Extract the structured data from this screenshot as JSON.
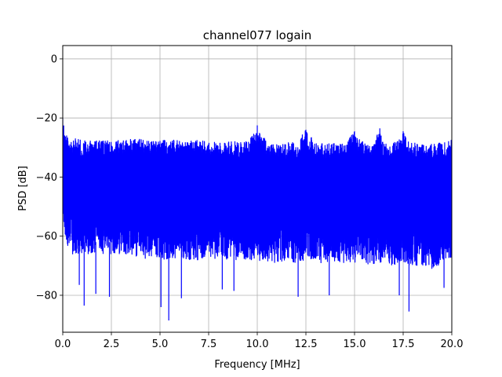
{
  "chart_data": {
    "type": "line",
    "title": "channel077 logain",
    "xlabel": "Frequency [MHz]",
    "ylabel": "PSD [dB]",
    "xlim": [
      0,
      20
    ],
    "ylim": [
      -92.5,
      4.5
    ],
    "grid": true,
    "legend": "none",
    "x_ticks": [
      0.0,
      2.5,
      5.0,
      7.5,
      10.0,
      12.5,
      15.0,
      17.5,
      20.0
    ],
    "x_tick_labels": [
      "0.0",
      "2.5",
      "5.0",
      "7.5",
      "10.0",
      "12.5",
      "15.0",
      "17.5",
      "20.0"
    ],
    "y_ticks": [
      0,
      -20,
      -40,
      -60,
      -80
    ],
    "y_tick_labels": [
      "0",
      "−20",
      "−40",
      "−60",
      "−80"
    ],
    "series": [
      {
        "color": "#0000ff",
        "description_points": {
          "x": [
            0.0,
            0.05,
            0.1,
            0.2,
            0.3,
            0.5,
            0.75,
            1.0,
            1.1,
            1.6,
            2.0,
            2.5,
            3.0,
            3.5,
            4.0,
            4.5,
            5.0,
            5.1,
            5.5,
            6.0,
            6.5,
            7.0,
            7.5,
            8.0,
            8.5,
            9.0,
            9.5,
            10.0,
            10.5,
            11.0,
            11.5,
            12.0,
            12.5,
            13.0,
            13.7,
            14.0,
            14.5,
            15.0,
            15.5,
            16.0,
            16.3,
            16.5,
            17.0,
            17.5,
            17.8,
            18.0,
            18.5,
            19.0,
            19.5,
            20.0
          ],
          "upper": [
            -20.0,
            -21.5,
            -24.0,
            -25.5,
            -26.5,
            -27.0,
            -27.0,
            -27.5,
            -27.5,
            -27.5,
            -27.8,
            -27.5,
            -27.5,
            -27.0,
            -27.0,
            -27.5,
            -27.5,
            -27.5,
            -27.5,
            -27.5,
            -27.8,
            -27.5,
            -28.0,
            -28.0,
            -28.0,
            -28.0,
            -28.0,
            -22.5,
            -28.0,
            -28.5,
            -28.0,
            -28.5,
            -24.0,
            -28.5,
            -28.5,
            -28.5,
            -28.5,
            -24.5,
            -28.5,
            -28.5,
            -23.5,
            -28.5,
            -28.5,
            -24.5,
            -28.5,
            -28.5,
            -28.5,
            -28.5,
            -28.5,
            -27.5
          ],
          "lower_typical": [
            -48.0,
            -56.0,
            -60.0,
            -62.0,
            -64.0,
            -66.0,
            -68.0,
            -66.0,
            -66.0,
            -66.0,
            -66.0,
            -66.0,
            -66.0,
            -66.0,
            -68.0,
            -67.0,
            -67.0,
            -68.0,
            -68.0,
            -67.0,
            -68.0,
            -68.0,
            -67.0,
            -68.0,
            -68.0,
            -68.0,
            -68.0,
            -68.0,
            -69.0,
            -69.0,
            -68.0,
            -69.0,
            -68.0,
            -69.0,
            -69.0,
            -69.0,
            -69.0,
            -69.0,
            -69.0,
            -70.0,
            -69.0,
            -69.0,
            -70.0,
            -69.0,
            -70.0,
            -70.0,
            -70.0,
            -71.0,
            -70.0,
            -68.0
          ],
          "deep_dips": [
            {
              "x": 0.85,
              "y": -76.5
            },
            {
              "x": 1.1,
              "y": -83.5
            },
            {
              "x": 1.7,
              "y": -79.5
            },
            {
              "x": 2.4,
              "y": -80.5
            },
            {
              "x": 5.05,
              "y": -84.0
            },
            {
              "x": 5.45,
              "y": -88.5
            },
            {
              "x": 6.1,
              "y": -81.0
            },
            {
              "x": 8.2,
              "y": -78.0
            },
            {
              "x": 8.8,
              "y": -78.5
            },
            {
              "x": 12.1,
              "y": -80.5
            },
            {
              "x": 13.7,
              "y": -80.0
            },
            {
              "x": 17.3,
              "y": -80.0
            },
            {
              "x": 17.8,
              "y": -85.5
            },
            {
              "x": 19.6,
              "y": -77.5
            }
          ]
        }
      }
    ]
  }
}
